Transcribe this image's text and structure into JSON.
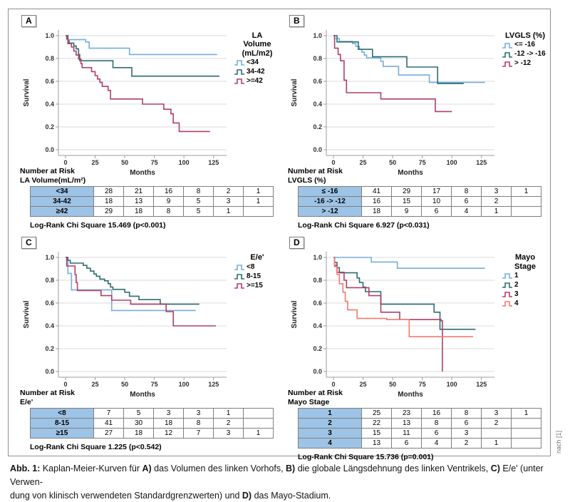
{
  "figure": {
    "panels": [
      {
        "letter": "A",
        "risk_title": "Number at Risk",
        "group_label": "LA Volume(mL/m²)",
        "rows": [
          {
            "label": "<34",
            "values": [
              "28",
              "21",
              "16",
              "8",
              "2",
              "1"
            ]
          },
          {
            "label": "34-42",
            "values": [
              "18",
              "13",
              "9",
              "5",
              "3",
              "1"
            ]
          },
          {
            "label": "≥42",
            "values": [
              "29",
              "18",
              "8",
              "5",
              "1",
              ""
            ]
          }
        ],
        "stats": "Log-Rank Chi Square 15.469 (p<0.001)"
      },
      {
        "letter": "B",
        "risk_title": "Number at Risk",
        "group_label": "LVGLS (%)",
        "rows": [
          {
            "label": "≤ -16",
            "values": [
              "41",
              "29",
              "17",
              "8",
              "3",
              "1"
            ]
          },
          {
            "label": "-16 -> -12",
            "values": [
              "16",
              "15",
              "10",
              "6",
              "2",
              ""
            ]
          },
          {
            "label": "> -12",
            "values": [
              "18",
              "9",
              "6",
              "4",
              "1",
              ""
            ]
          }
        ],
        "stats": "Log-Rank Chi Square 6.927 (p<0.031)"
      },
      {
        "letter": "C",
        "risk_title": "Number at Risk",
        "group_label": "E/e'",
        "rows": [
          {
            "label": "<8",
            "values": [
              "7",
              "5",
              "3",
              "3",
              "1",
              ""
            ]
          },
          {
            "label": "8-15",
            "values": [
              "41",
              "30",
              "18",
              "8",
              "2",
              ""
            ]
          },
          {
            "label": "≥15",
            "values": [
              "27",
              "18",
              "12",
              "7",
              "3",
              "1"
            ]
          }
        ],
        "stats": "Log-Rank Chi Square 1.225 (p<0.542)"
      },
      {
        "letter": "D",
        "risk_title": "Number at Risk",
        "group_label": "Mayo Stage",
        "rows": [
          {
            "label": "1",
            "values": [
              "25",
              "23",
              "16",
              "8",
              "3",
              "1"
            ]
          },
          {
            "label": "2",
            "values": [
              "22",
              "13",
              "8",
              "6",
              "2",
              ""
            ]
          },
          {
            "label": "3",
            "values": [
              "15",
              "11",
              "6",
              "3",
              "",
              ""
            ]
          },
          {
            "label": "4",
            "values": [
              "13",
              "6",
              "4",
              "2",
              "1",
              ""
            ]
          }
        ],
        "stats": "Log-Rank Chi Square 15.736 (p=0.001)"
      }
    ],
    "source_note": "nach [1]",
    "caption_segments": [
      {
        "text": "Abb. 1: ",
        "bold": true
      },
      {
        "text": "Kaplan-Meier-Kurven für ",
        "bold": false
      },
      {
        "text": "A)",
        "bold": true
      },
      {
        "text": " das Volumen des linken Vorhofs, ",
        "bold": false
      },
      {
        "text": "B)",
        "bold": true
      },
      {
        "text": " die globale Längsdehnung des linken Ventrikels, ",
        "bold": false
      },
      {
        "text": "C)",
        "bold": true
      },
      {
        "text": " E/e' (unter Verwen-",
        "bold": false
      },
      {
        "text": "dung von klinisch verwendeten Standardgrenzwerten) und ",
        "bold": false,
        "break_before": true
      },
      {
        "text": "D)",
        "bold": true
      },
      {
        "text": " das Mayo-Stadium.",
        "bold": false
      }
    ]
  },
  "colors": {
    "blue": "#74AEDC",
    "teal": "#2E6E71",
    "magenta": "#B23E68",
    "salmon": "#F4796F",
    "grid": "#DBDBDB",
    "spine": "#9E9E9E",
    "table_header_bg": "#9DC3E6",
    "table_border": "#7F7F7F"
  },
  "chart_data": [
    {
      "type": "line",
      "subtype": "kaplan-meier-step",
      "legend_title_lines": [
        "LA",
        "Volume",
        "(mL/m2)"
      ],
      "xlabel": "Months",
      "ylabel": "Survival",
      "xticks": [
        0,
        25,
        50,
        75,
        100,
        125
      ],
      "yticks": [
        0.0,
        0.2,
        0.4,
        0.6,
        0.8,
        1.0
      ],
      "xlim": [
        -6,
        136
      ],
      "ylim": [
        0,
        1
      ],
      "grid": "horizontal",
      "legend_position": "right",
      "series": [
        {
          "name": "<34",
          "color": "blue",
          "points": [
            [
              0,
              1.0
            ],
            [
              2,
              0.965
            ],
            [
              17,
              0.945
            ],
            [
              20,
              0.89
            ],
            [
              54,
              0.835
            ],
            [
              128,
              0.835
            ]
          ]
        },
        {
          "name": "34-42",
          "color": "teal",
          "points": [
            [
              0,
              1.0
            ],
            [
              2,
              0.955
            ],
            [
              3,
              0.935
            ],
            [
              7,
              0.91
            ],
            [
              9,
              0.885
            ],
            [
              11,
              0.835
            ],
            [
              12,
              0.78
            ],
            [
              40,
              0.72
            ],
            [
              56,
              0.645
            ],
            [
              130,
              0.645
            ]
          ]
        },
        {
          "name": ">=42",
          "color": "magenta",
          "points": [
            [
              0,
              1.0
            ],
            [
              1,
              0.97
            ],
            [
              2,
              0.93
            ],
            [
              5,
              0.9
            ],
            [
              7,
              0.865
            ],
            [
              9,
              0.83
            ],
            [
              11,
              0.795
            ],
            [
              13,
              0.755
            ],
            [
              14,
              0.72
            ],
            [
              22,
              0.685
            ],
            [
              25,
              0.65
            ],
            [
              27,
              0.62
            ],
            [
              29,
              0.59
            ],
            [
              31,
              0.555
            ],
            [
              36,
              0.52
            ],
            [
              38,
              0.445
            ],
            [
              65,
              0.4
            ],
            [
              83,
              0.355
            ],
            [
              89,
              0.315
            ],
            [
              91,
              0.235
            ],
            [
              96,
              0.16
            ],
            [
              122,
              0.16
            ]
          ]
        }
      ]
    },
    {
      "type": "line",
      "subtype": "kaplan-meier-step",
      "legend_title_lines": [
        "LVGLS (%)"
      ],
      "xlabel": "Months",
      "ylabel": "Survival",
      "xticks": [
        0,
        25,
        50,
        75,
        100,
        125
      ],
      "yticks": [
        0.0,
        0.2,
        0.4,
        0.6,
        0.8,
        1.0
      ],
      "xlim": [
        -6,
        136
      ],
      "ylim": [
        0,
        1
      ],
      "grid": "horizontal",
      "legend_position": "right",
      "series": [
        {
          "name": "<= -16",
          "color": "blue",
          "points": [
            [
              0,
              1.0
            ],
            [
              1,
              0.975
            ],
            [
              5,
              0.95
            ],
            [
              16,
              0.93
            ],
            [
              19,
              0.905
            ],
            [
              22,
              0.88
            ],
            [
              24,
              0.855
            ],
            [
              26,
              0.83
            ],
            [
              28,
              0.805
            ],
            [
              40,
              0.775
            ],
            [
              42,
              0.73
            ],
            [
              55,
              0.655
            ],
            [
              81,
              0.59
            ],
            [
              128,
              0.59
            ]
          ]
        },
        {
          "name": "-12 -> -16",
          "color": "teal",
          "points": [
            [
              0,
              1.0
            ],
            [
              3,
              0.945
            ],
            [
              21,
              0.88
            ],
            [
              33,
              0.815
            ],
            [
              62,
              0.725
            ],
            [
              88,
              0.58
            ],
            [
              110,
              0.58
            ]
          ]
        },
        {
          "name": "> -12",
          "color": "magenta",
          "points": [
            [
              0,
              1.0
            ],
            [
              1,
              0.89
            ],
            [
              4,
              0.835
            ],
            [
              6,
              0.78
            ],
            [
              9,
              0.61
            ],
            [
              11,
              0.5
            ],
            [
              40,
              0.445
            ],
            [
              86,
              0.335
            ],
            [
              100,
              0.335
            ]
          ]
        }
      ]
    },
    {
      "type": "line",
      "subtype": "kaplan-meier-step",
      "legend_title_lines": [
        "E/e'"
      ],
      "xlabel": "Months",
      "ylabel": "Survival",
      "xticks": [
        0,
        25,
        50,
        75,
        100,
        125
      ],
      "yticks": [
        0.0,
        0.2,
        0.4,
        0.6,
        0.8,
        1.0
      ],
      "xlim": [
        -6,
        136
      ],
      "ylim": [
        0,
        1
      ],
      "grid": "horizontal",
      "legend_position": "right",
      "series": [
        {
          "name": "<8",
          "color": "blue",
          "points": [
            [
              0,
              1.0
            ],
            [
              2,
              0.86
            ],
            [
              5,
              0.715
            ],
            [
              39,
              0.535
            ],
            [
              110,
              0.535
            ]
          ]
        },
        {
          "name": "8-15",
          "color": "teal",
          "points": [
            [
              0,
              1.0
            ],
            [
              2,
              0.975
            ],
            [
              4,
              0.95
            ],
            [
              15,
              0.93
            ],
            [
              18,
              0.905
            ],
            [
              21,
              0.88
            ],
            [
              24,
              0.855
            ],
            [
              26,
              0.835
            ],
            [
              29,
              0.81
            ],
            [
              33,
              0.795
            ],
            [
              36,
              0.77
            ],
            [
              38,
              0.74
            ],
            [
              40,
              0.72
            ],
            [
              50,
              0.695
            ],
            [
              54,
              0.66
            ],
            [
              62,
              0.63
            ],
            [
              80,
              0.59
            ],
            [
              113,
              0.59
            ]
          ]
        },
        {
          "name": ">=15",
          "color": "magenta",
          "points": [
            [
              0,
              1.0
            ],
            [
              1,
              0.925
            ],
            [
              8,
              0.85
            ],
            [
              9,
              0.78
            ],
            [
              10,
              0.71
            ],
            [
              30,
              0.665
            ],
            [
              39,
              0.625
            ],
            [
              55,
              0.59
            ],
            [
              85,
              0.525
            ],
            [
              91,
              0.4
            ],
            [
              127,
              0.4
            ]
          ]
        }
      ]
    },
    {
      "type": "line",
      "subtype": "kaplan-meier-step",
      "legend_title_lines": [
        "Mayo",
        "Stage"
      ],
      "xlabel": "Months",
      "ylabel": "Survival",
      "xticks": [
        0,
        25,
        50,
        75,
        100,
        125
      ],
      "yticks": [
        0.0,
        0.2,
        0.4,
        0.6,
        0.8,
        1.0
      ],
      "xlim": [
        -6,
        136
      ],
      "ylim": [
        0,
        1
      ],
      "grid": "horizontal",
      "legend_position": "right",
      "series": [
        {
          "name": "1",
          "color": "blue",
          "points": [
            [
              0,
              1.0
            ],
            [
              32,
              0.96
            ],
            [
              54,
              0.905
            ],
            [
              128,
              0.905
            ]
          ]
        },
        {
          "name": "2",
          "color": "teal",
          "points": [
            [
              0,
              1.0
            ],
            [
              1,
              0.955
            ],
            [
              3,
              0.91
            ],
            [
              5,
              0.865
            ],
            [
              20,
              0.82
            ],
            [
              22,
              0.78
            ],
            [
              25,
              0.74
            ],
            [
              27,
              0.7
            ],
            [
              40,
              0.59
            ],
            [
              85,
              0.52
            ],
            [
              90,
              0.37
            ],
            [
              120,
              0.37
            ]
          ]
        },
        {
          "name": "3",
          "color": "magenta",
          "points": [
            [
              0,
              1.0
            ],
            [
              1,
              0.93
            ],
            [
              3,
              0.87
            ],
            [
              9,
              0.8
            ],
            [
              11,
              0.735
            ],
            [
              30,
              0.665
            ],
            [
              40,
              0.52
            ],
            [
              56,
              0.455
            ],
            [
              91,
              0.445
            ],
            [
              92,
              0.0
            ]
          ]
        },
        {
          "name": "4",
          "color": "salmon",
          "points": [
            [
              0,
              1.0
            ],
            [
              1,
              0.92
            ],
            [
              3,
              0.85
            ],
            [
              5,
              0.77
            ],
            [
              8,
              0.695
            ],
            [
              10,
              0.615
            ],
            [
              12,
              0.54
            ],
            [
              20,
              0.465
            ],
            [
              45,
              0.455
            ],
            [
              64,
              0.305
            ],
            [
              118,
              0.305
            ]
          ]
        }
      ]
    }
  ]
}
